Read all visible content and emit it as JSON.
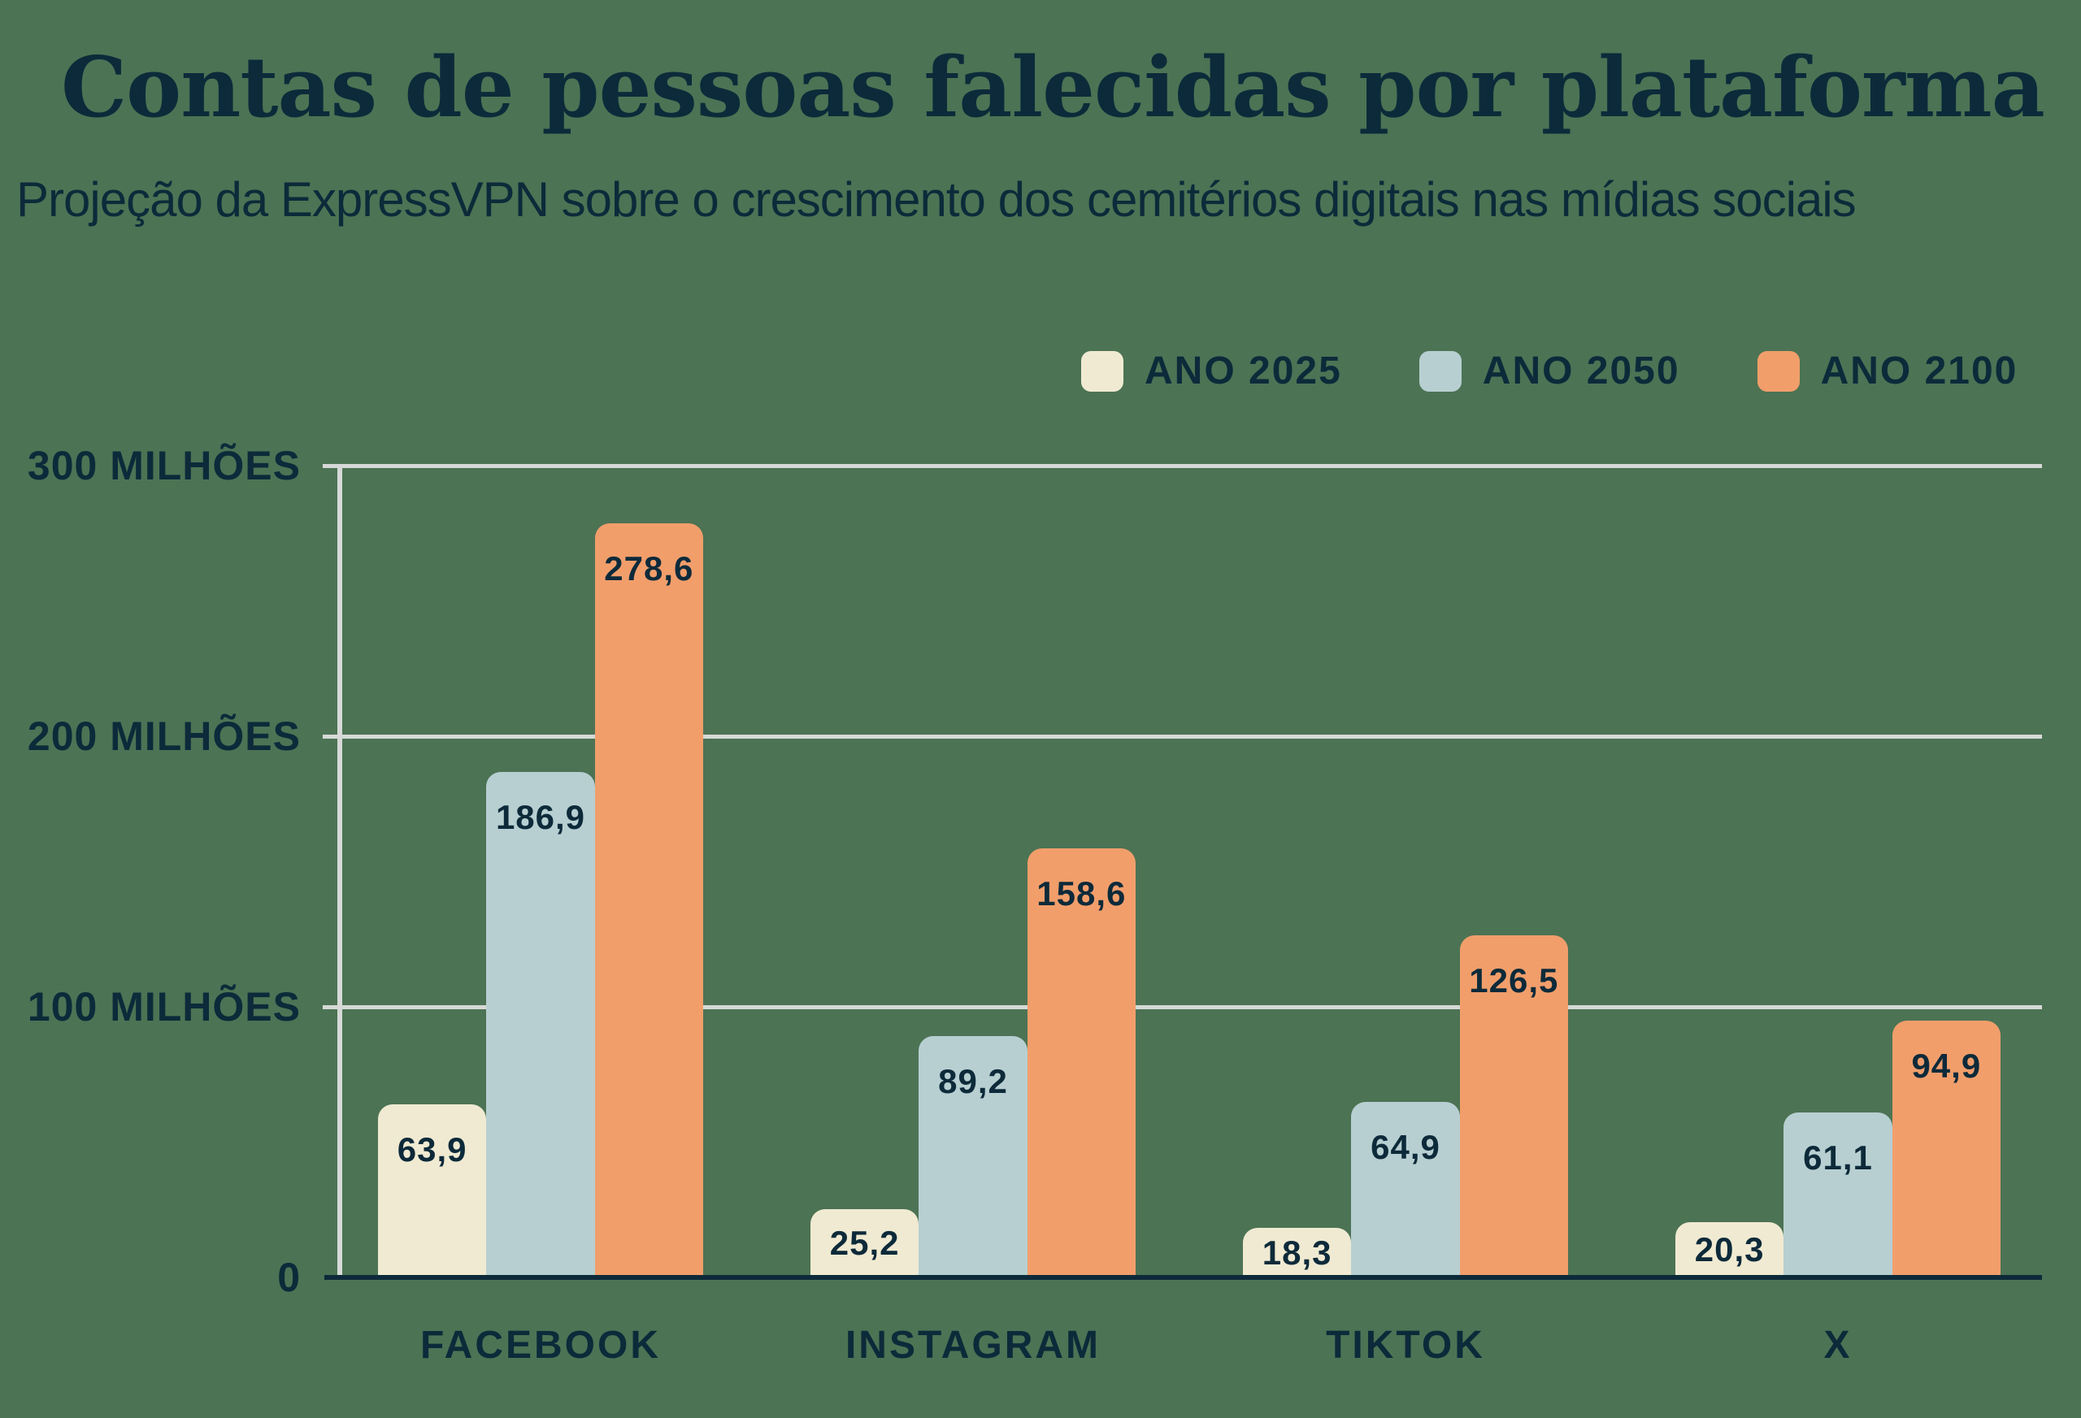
{
  "header": {
    "title": "Contas de pessoas falecidas por plataforma",
    "subtitle": "Projeção da ExpressVPN sobre o crescimento dos cemitérios digitais nas mídias sociais"
  },
  "legend": {
    "items": [
      {
        "label": "ANO 2025",
        "color": "#F0EAD2"
      },
      {
        "label": "ANO 2050",
        "color": "#B7CFD1"
      },
      {
        "label": "ANO 2100",
        "color": "#F19E6B"
      }
    ]
  },
  "chart_data": {
    "type": "bar",
    "title": "Contas de pessoas falecidas por plataforma",
    "subtitle": "Projeção da ExpressVPN sobre o crescimento dos cemitérios digitais nas mídias sociais",
    "categories": [
      "FACEBOOK",
      "INSTAGRAM",
      "TIKTOK",
      "X"
    ],
    "series": [
      {
        "name": "ANO 2025",
        "color": "#F0EAD2",
        "values": [
          63.9,
          25.2,
          18.3,
          20.3
        ]
      },
      {
        "name": "ANO 2050",
        "color": "#B7CFD1",
        "values": [
          186.9,
          89.2,
          64.9,
          61.1
        ]
      },
      {
        "name": "ANO 2100",
        "color": "#F19E6B",
        "values": [
          278.6,
          158.6,
          126.5,
          94.9
        ]
      }
    ],
    "unit": "milhões",
    "decimal_separator": ",",
    "ylim": [
      0,
      300
    ],
    "yticks": [
      {
        "value": 0,
        "label": "0"
      },
      {
        "value": 100,
        "label": "100 MILHÕES"
      },
      {
        "value": 200,
        "label": "200 MILHÕES"
      },
      {
        "value": 300,
        "label": "300 MILHÕES"
      }
    ],
    "grid": "horizontal",
    "legend_position": "top-right",
    "value_labels": "inside-top"
  },
  "colors": {
    "background": "#4C7354",
    "text": "#0D2A3A",
    "gridline": "#D6D9D7",
    "axis_line": "#0D2A3A"
  }
}
